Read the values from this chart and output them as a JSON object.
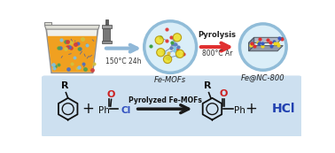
{
  "bg_color": "#ffffff",
  "bottom_bg": "#cde0f0",
  "arrow1_color": "#90b8d8",
  "arrow2_color": "#e03030",
  "arrow3_color": "#1a1a1a",
  "text_150c": "150°C 24h",
  "text_pyrolysis": "Pyrolysis",
  "text_800c": "800°C Ar",
  "text_femofs": "Fe-MOFs",
  "text_fenc": "Fe@NC-800",
  "text_catalyst": "Pyrolyzed Fe-MOFs",
  "text_hcl": "HCl",
  "liquid_color": "#f0a020",
  "circle_bg": "#daeef8",
  "circle_border": "#90bcd8",
  "dot_colors": [
    "#5070c0",
    "#d04040",
    "#50a050",
    "#d0c040",
    "#80c0e0"
  ],
  "mof_dot_colors": [
    "#6080c0",
    "#e04040",
    "#40a040",
    "#e0c040",
    "#80c8e8"
  ],
  "yellow_cluster": "#f0e020",
  "yellow_cluster_edge": "#b09000",
  "sheet_face": "#9098a8",
  "sheet_top": "#b0b8c8",
  "sheet_edge": "#505860",
  "dot_on_sheet": [
    "#e03030",
    "#f0d820",
    "#3858c0"
  ]
}
